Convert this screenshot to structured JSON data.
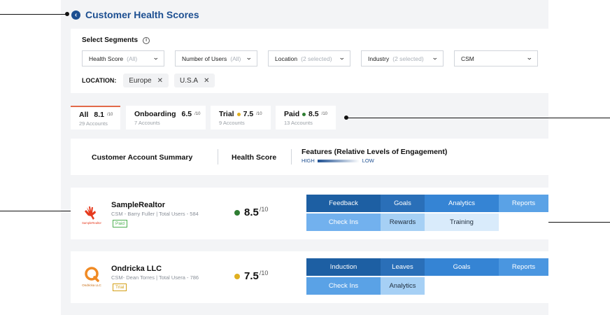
{
  "header": {
    "title": "Customer Health Scores"
  },
  "segments": {
    "heading": "Select Segments",
    "filters": [
      {
        "label": "Health Score",
        "muted": "(All)"
      },
      {
        "label": "Number of Users",
        "muted": "(All)"
      },
      {
        "label": "Location",
        "muted": "(2 selected)"
      },
      {
        "label": "Industry",
        "muted": "(2 selected)"
      },
      {
        "label": "CSM",
        "muted": ""
      }
    ],
    "location_label": "LOCATION:",
    "location_chips": [
      "Europe",
      "U.S.A"
    ]
  },
  "tabs": [
    {
      "name": "All",
      "score": "8.1",
      "out_of": "/10",
      "accounts": "29 Accounts",
      "color": "#2e7d32"
    },
    {
      "name": "Onboarding",
      "score": "6.5",
      "out_of": "/10",
      "accounts": "7 Accounts",
      "color": "#e26a4a"
    },
    {
      "name": "Trial",
      "score": "7.5",
      "out_of": "/10",
      "accounts": "9 Accounts",
      "color": "#e0b020"
    },
    {
      "name": "Paid",
      "score": "8.5",
      "out_of": "/10",
      "accounts": "13 Accounts",
      "color": "#2e7d32"
    }
  ],
  "summary": {
    "col_account": "Customer Account Summary",
    "col_health": "Health Score",
    "col_features": "Features (Relative Levels of Engagement)",
    "legend_high": "HIGH",
    "legend_low": "LOW"
  },
  "accounts": [
    {
      "name": "SampleRealtor",
      "csm": "CSM - Barry Fuller",
      "users": "Total Users - 584",
      "badge": "Paid",
      "logo_text": "SampleRealtor",
      "score": "8.5",
      "out_of": "/10",
      "features_row1": [
        "Feedback",
        "Goals",
        "Analytics",
        "Reports"
      ],
      "features_row2": [
        "Check Ins",
        "Rewards",
        "Training"
      ]
    },
    {
      "name": "Ondricka LLC",
      "csm": "CSM- Dean Torres",
      "users": "Total Usera - 786",
      "badge": "Trial",
      "logo_text": "Ondricka LLC",
      "score": "7.5",
      "out_of": "/10",
      "features_row1": [
        "Induction",
        "Leaves",
        "Goals",
        "Reports"
      ],
      "features_row2": [
        "Check Ins",
        "Analytics"
      ]
    }
  ],
  "colors": {
    "brand": "#1d4f91",
    "accent": "#e26a4a",
    "good": "#2e7d32",
    "warn": "#e0b020"
  }
}
